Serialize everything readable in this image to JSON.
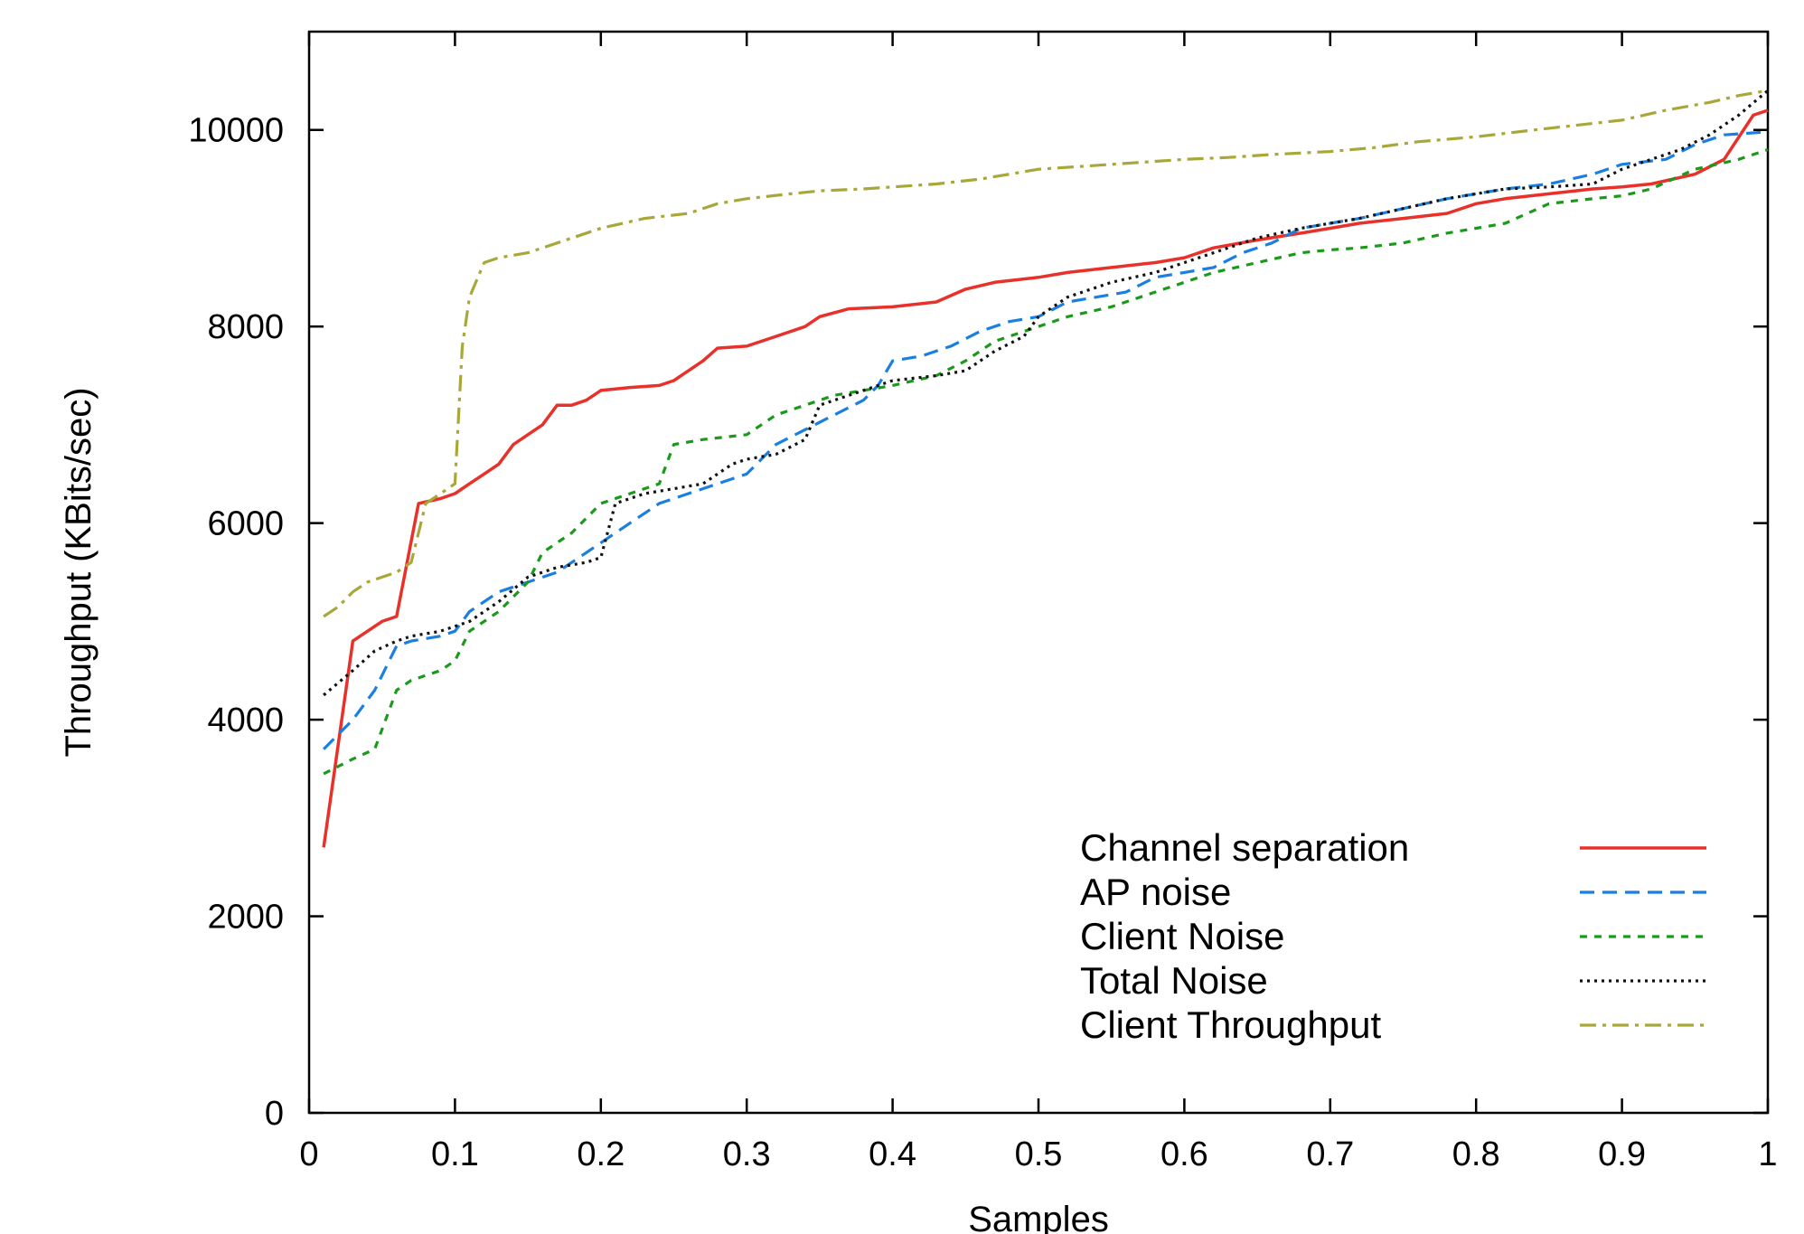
{
  "chart_data": {
    "type": "line",
    "title": "",
    "xlabel": "Samples",
    "ylabel": "Throughput (KBits/sec)",
    "xlim": [
      0,
      1
    ],
    "ylim": [
      0,
      11000
    ],
    "xticks": [
      "0",
      "0.1",
      "0.2",
      "0.3",
      "0.4",
      "0.5",
      "0.6",
      "0.7",
      "0.8",
      "0.9",
      "1"
    ],
    "yticks": [
      "0",
      "2000",
      "4000",
      "6000",
      "8000",
      "10000"
    ],
    "grid": false,
    "legend_position": "bottom-right",
    "series": [
      {
        "name": "Channel separation",
        "color": "#e8312a",
        "dash": "solid",
        "x": [
          0.01,
          0.03,
          0.04,
          0.05,
          0.06,
          0.075,
          0.09,
          0.1,
          0.11,
          0.12,
          0.13,
          0.14,
          0.15,
          0.16,
          0.17,
          0.18,
          0.19,
          0.2,
          0.22,
          0.24,
          0.25,
          0.27,
          0.28,
          0.3,
          0.32,
          0.34,
          0.35,
          0.37,
          0.4,
          0.43,
          0.45,
          0.47,
          0.5,
          0.52,
          0.55,
          0.58,
          0.6,
          0.62,
          0.65,
          0.68,
          0.7,
          0.72,
          0.75,
          0.78,
          0.8,
          0.82,
          0.85,
          0.88,
          0.9,
          0.92,
          0.95,
          0.97,
          0.99,
          1.0
        ],
        "y": [
          2700,
          4800,
          4900,
          5000,
          5050,
          6200,
          6250,
          6300,
          6400,
          6500,
          6600,
          6800,
          6900,
          7000,
          7200,
          7200,
          7250,
          7350,
          7380,
          7400,
          7450,
          7650,
          7780,
          7800,
          7900,
          8000,
          8100,
          8180,
          8200,
          8250,
          8380,
          8450,
          8500,
          8550,
          8600,
          8650,
          8700,
          8800,
          8880,
          8950,
          9000,
          9050,
          9100,
          9150,
          9250,
          9300,
          9350,
          9400,
          9420,
          9450,
          9550,
          9700,
          10150,
          10200
        ]
      },
      {
        "name": "AP noise",
        "color": "#1a7fe0",
        "dash": "dashed",
        "x": [
          0.01,
          0.03,
          0.045,
          0.06,
          0.07,
          0.09,
          0.1,
          0.11,
          0.13,
          0.15,
          0.17,
          0.19,
          0.2,
          0.22,
          0.24,
          0.26,
          0.28,
          0.3,
          0.32,
          0.34,
          0.36,
          0.38,
          0.39,
          0.4,
          0.42,
          0.44,
          0.46,
          0.48,
          0.5,
          0.52,
          0.54,
          0.56,
          0.58,
          0.6,
          0.62,
          0.64,
          0.66,
          0.68,
          0.7,
          0.72,
          0.75,
          0.78,
          0.8,
          0.82,
          0.85,
          0.88,
          0.9,
          0.93,
          0.95,
          0.97,
          1.0
        ],
        "y": [
          3700,
          4000,
          4300,
          4750,
          4800,
          4850,
          4900,
          5100,
          5300,
          5400,
          5500,
          5700,
          5800,
          6000,
          6200,
          6300,
          6400,
          6500,
          6800,
          6950,
          7100,
          7250,
          7400,
          7650,
          7700,
          7800,
          7950,
          8050,
          8100,
          8250,
          8300,
          8350,
          8500,
          8550,
          8600,
          8750,
          8850,
          9000,
          9050,
          9100,
          9200,
          9300,
          9350,
          9400,
          9450,
          9550,
          9650,
          9700,
          9850,
          9950,
          9980
        ]
      },
      {
        "name": "Client Noise",
        "color": "#1a9a1a",
        "dash": "dotted-dash",
        "x": [
          0.01,
          0.03,
          0.045,
          0.06,
          0.07,
          0.09,
          0.1,
          0.11,
          0.13,
          0.15,
          0.16,
          0.18,
          0.2,
          0.22,
          0.24,
          0.25,
          0.27,
          0.3,
          0.32,
          0.34,
          0.36,
          0.38,
          0.4,
          0.43,
          0.45,
          0.47,
          0.5,
          0.52,
          0.55,
          0.58,
          0.6,
          0.62,
          0.65,
          0.68,
          0.7,
          0.72,
          0.75,
          0.78,
          0.8,
          0.82,
          0.85,
          0.88,
          0.9,
          0.92,
          0.95,
          0.98,
          1.0
        ],
        "y": [
          3450,
          3600,
          3700,
          4300,
          4400,
          4500,
          4600,
          4900,
          5100,
          5400,
          5700,
          5900,
          6200,
          6300,
          6400,
          6800,
          6850,
          6900,
          7100,
          7200,
          7300,
          7350,
          7400,
          7500,
          7650,
          7850,
          8000,
          8100,
          8200,
          8350,
          8450,
          8550,
          8650,
          8750,
          8780,
          8800,
          8850,
          8950,
          9000,
          9050,
          9250,
          9300,
          9330,
          9400,
          9600,
          9700,
          9800
        ]
      },
      {
        "name": "Total Noise",
        "color": "#111111",
        "dash": "dotted",
        "x": [
          0.01,
          0.03,
          0.045,
          0.06,
          0.07,
          0.09,
          0.1,
          0.11,
          0.13,
          0.15,
          0.17,
          0.19,
          0.2,
          0.21,
          0.23,
          0.25,
          0.27,
          0.29,
          0.3,
          0.32,
          0.34,
          0.35,
          0.37,
          0.4,
          0.43,
          0.45,
          0.47,
          0.49,
          0.5,
          0.52,
          0.55,
          0.58,
          0.6,
          0.62,
          0.65,
          0.68,
          0.7,
          0.72,
          0.75,
          0.78,
          0.8,
          0.82,
          0.85,
          0.88,
          0.9,
          0.92,
          0.94,
          0.96,
          0.98,
          1.0
        ],
        "y": [
          4250,
          4500,
          4700,
          4800,
          4850,
          4900,
          4950,
          5000,
          5200,
          5450,
          5550,
          5600,
          5650,
          6200,
          6300,
          6350,
          6400,
          6600,
          6650,
          6700,
          6850,
          7200,
          7300,
          7450,
          7500,
          7550,
          7750,
          7900,
          8100,
          8300,
          8450,
          8550,
          8650,
          8750,
          8900,
          9000,
          9050,
          9100,
          9200,
          9300,
          9350,
          9400,
          9420,
          9450,
          9600,
          9700,
          9800,
          9950,
          10150,
          10400
        ]
      },
      {
        "name": "Client Throughput",
        "color": "#a8a83a",
        "dash": "dash-dot",
        "x": [
          0.01,
          0.02,
          0.03,
          0.04,
          0.05,
          0.06,
          0.07,
          0.08,
          0.09,
          0.095,
          0.1,
          0.105,
          0.11,
          0.12,
          0.13,
          0.15,
          0.17,
          0.2,
          0.23,
          0.26,
          0.28,
          0.3,
          0.33,
          0.35,
          0.38,
          0.4,
          0.43,
          0.46,
          0.48,
          0.5,
          0.53,
          0.56,
          0.6,
          0.63,
          0.66,
          0.7,
          0.73,
          0.76,
          0.8,
          0.84,
          0.87,
          0.9,
          0.93,
          0.96,
          0.98,
          1.0
        ],
        "y": [
          5050,
          5150,
          5300,
          5400,
          5450,
          5500,
          5600,
          6200,
          6300,
          6350,
          6400,
          7800,
          8300,
          8650,
          8700,
          8750,
          8850,
          9000,
          9100,
          9150,
          9250,
          9300,
          9350,
          9380,
          9400,
          9420,
          9450,
          9500,
          9550,
          9600,
          9630,
          9660,
          9700,
          9720,
          9750,
          9780,
          9820,
          9880,
          9930,
          10000,
          10050,
          10100,
          10200,
          10280,
          10350,
          10400
        ]
      }
    ]
  }
}
